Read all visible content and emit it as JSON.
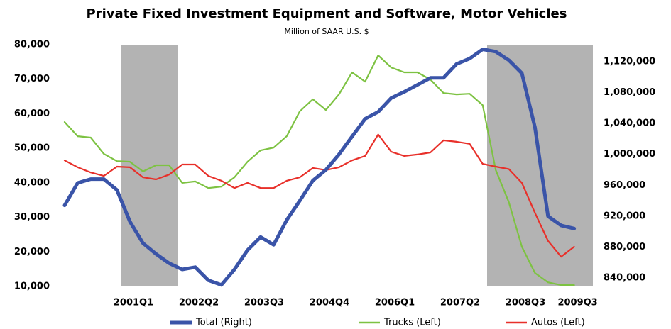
{
  "chart_data": {
    "type": "line",
    "title": "Private Fixed Investment Equipment and Software, Motor Vehicles",
    "subtitle": "Million of SAAR U.S. $",
    "categories": [
      null,
      null,
      null,
      null,
      null,
      "2001Q1",
      null,
      null,
      null,
      null,
      "2002Q2",
      null,
      null,
      null,
      null,
      "2003Q3",
      null,
      null,
      null,
      null,
      "2004Q4",
      null,
      null,
      null,
      null,
      "2006Q1",
      null,
      null,
      null,
      null,
      "2007Q2",
      null,
      null,
      null,
      null,
      "2008Q3",
      null,
      null,
      null,
      "2009Q3"
    ],
    "ylim": [
      10000,
      80000
    ],
    "yticks": [
      {
        "value": 10000,
        "label": "10,000"
      },
      {
        "value": 20000,
        "label": "20,000"
      },
      {
        "value": 30000,
        "label": "30,000"
      },
      {
        "value": 40000,
        "label": "40,000"
      },
      {
        "value": 50000,
        "label": "50,000"
      },
      {
        "value": 60000,
        "label": "60,000"
      },
      {
        "value": 70000,
        "label": "70,000"
      },
      {
        "value": 80000,
        "label": "80,000"
      }
    ],
    "y2lim": [
      829000,
      1142000
    ],
    "y2ticks": [
      {
        "value": 840000,
        "label": "840,000"
      },
      {
        "value": 880000,
        "label": "880,000"
      },
      {
        "value": 920000,
        "label": "920,000"
      },
      {
        "value": 960000,
        "label": "960,000"
      },
      {
        "value": 1000000,
        "label": "1,000,000"
      },
      {
        "value": 1040000,
        "label": "1,040,000"
      },
      {
        "value": 1080000,
        "label": "1,080,000"
      },
      {
        "value": 1120000,
        "label": "1,120,000"
      }
    ],
    "series": [
      {
        "name": "Total (Right)",
        "color": "#3a54a8",
        "axis": "y2",
        "values": [
          934000,
          963000,
          968000,
          968000,
          954000,
          913000,
          885000,
          871000,
          859000,
          851000,
          854000,
          837000,
          831000,
          851000,
          876000,
          893000,
          883000,
          915000,
          940000,
          966000,
          980000,
          1000000,
          1023000,
          1046000,
          1055000,
          1073000,
          1081000,
          1090000,
          1099000,
          1099000,
          1117000,
          1124000,
          1136000,
          1133000,
          1122000,
          1105000,
          1035000,
          920000,
          908000,
          904000
        ]
      },
      {
        "name": "Trucks (Left)",
        "color": "#7dc242",
        "values": [
          57600,
          53500,
          53100,
          48400,
          46300,
          46100,
          43300,
          45100,
          45100,
          40000,
          40400,
          38500,
          38900,
          41600,
          46100,
          49400,
          50200,
          53500,
          60700,
          64200,
          61100,
          65600,
          72000,
          69300,
          76900,
          73400,
          72000,
          72000,
          69900,
          66000,
          65600,
          65800,
          62500,
          43700,
          34400,
          21500,
          13900,
          11200,
          10400,
          10400
        ]
      },
      {
        "name": "Autos (Left)",
        "color": "#e8302a",
        "values": [
          46500,
          44500,
          43000,
          42000,
          44700,
          44500,
          41600,
          41000,
          42400,
          45300,
          45300,
          42000,
          40600,
          38500,
          40000,
          38500,
          38500,
          40600,
          41600,
          44300,
          43700,
          44500,
          46500,
          47800,
          54000,
          49000,
          47800,
          48200,
          48800,
          52300,
          51900,
          51300,
          45500,
          44700,
          44000,
          40000,
          31300,
          23200,
          18600,
          21500
        ]
      }
    ]
  }
}
